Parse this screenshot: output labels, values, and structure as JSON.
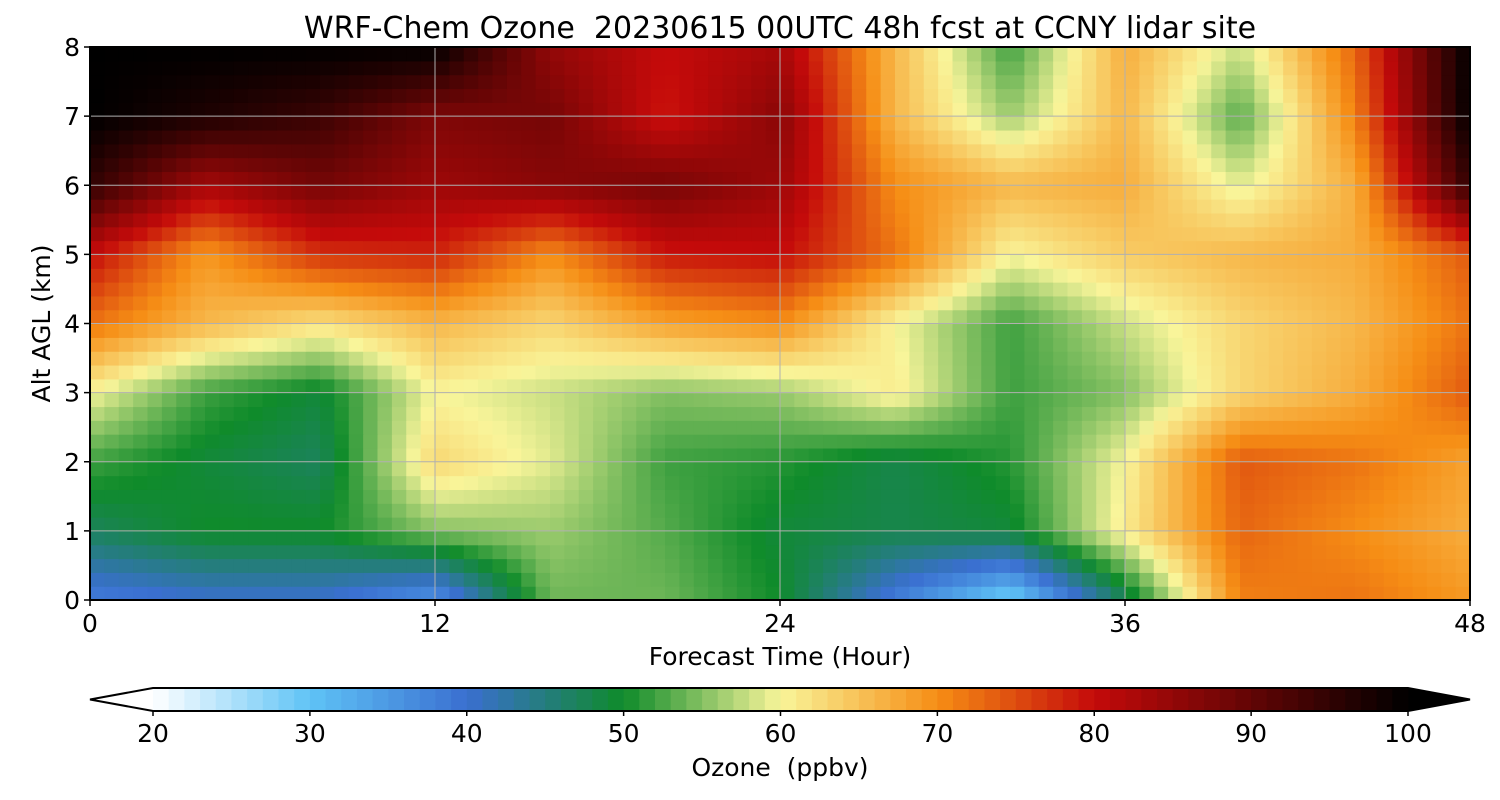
{
  "chart_data": {
    "type": "heatmap",
    "title": "WRF-Chem Ozone  20230615 00UTC 48h fcst at CCNY lidar site",
    "xlabel": "Forecast Time (Hour)",
    "ylabel": "Alt AGL (km)",
    "xlim": [
      0,
      48
    ],
    "ylim": [
      0,
      8
    ],
    "xticks": [
      0,
      12,
      24,
      36,
      48
    ],
    "yticks": [
      0,
      1,
      2,
      3,
      4,
      5,
      6,
      7,
      8
    ],
    "grid": true,
    "colorbar": {
      "label": "Ozone  (ppbv)",
      "range": [
        20,
        100
      ],
      "ticks": [
        20,
        30,
        40,
        50,
        60,
        70,
        80,
        90,
        100
      ],
      "extend": "both",
      "orientation": "horizontal",
      "colors": [
        "#ffffff",
        "#5fc3f6",
        "#3a6fd0",
        "#0f8b2a",
        "#f9f59a",
        "#f68e15",
        "#c40a0a",
        "#000000"
      ],
      "color_stops": [
        20,
        30,
        40,
        50,
        60,
        70,
        80,
        100
      ]
    },
    "x_hours": [
      0,
      4,
      8,
      12,
      16,
      20,
      24,
      28,
      32,
      36,
      40,
      44,
      48
    ],
    "y_km": [
      0,
      1,
      2,
      3,
      4,
      5,
      6,
      7,
      8
    ],
    "values_ppbv": [
      [
        38,
        40,
        40,
        35,
        54,
        54,
        50,
        38,
        28,
        47,
        71,
        72,
        69
      ],
      [
        47,
        50,
        50,
        55,
        56,
        53,
        49,
        48,
        49,
        61,
        73,
        70,
        67
      ],
      [
        52,
        49,
        47,
        63,
        59,
        52,
        51,
        48,
        51,
        60,
        74,
        72,
        68
      ],
      [
        60,
        52,
        49,
        60,
        58,
        55,
        56,
        61,
        52,
        55,
        63,
        67,
        74
      ],
      [
        72,
        66,
        62,
        66,
        63,
        68,
        70,
        60,
        52,
        58,
        63,
        66,
        72
      ],
      [
        80,
        69,
        77,
        78,
        70,
        79,
        80,
        72,
        60,
        64,
        66,
        67,
        74
      ],
      [
        95,
        83,
        88,
        84,
        86,
        88,
        84,
        70,
        66,
        67,
        59,
        67,
        95
      ],
      [
        100,
        97,
        94,
        87,
        88,
        79,
        86,
        66,
        56,
        66,
        53,
        71,
        100
      ],
      [
        100,
        100,
        100,
        100,
        85,
        80,
        83,
        66,
        52,
        67,
        58,
        73,
        100
      ]
    ]
  }
}
